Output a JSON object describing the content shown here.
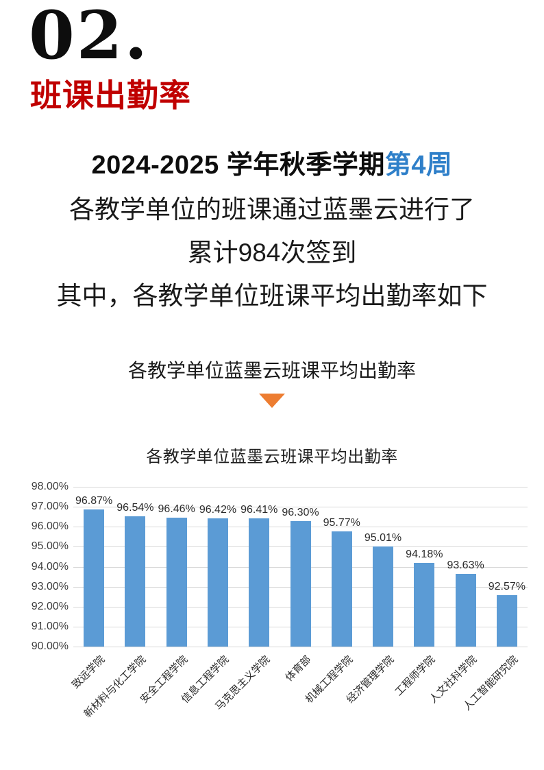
{
  "page": {
    "section_number": "02.",
    "section_title": "班课出勤率",
    "headline_black": "2024-2025 学年秋季学期",
    "headline_week": "第4周",
    "body_lines": [
      "各教学单位的班课通过蓝墨云进行了",
      "累计984次签到",
      "其中，各教学单位班课平均出勤率如下"
    ],
    "chart_subtitle": "各教学单位蓝墨云班课平均出勤率"
  },
  "icons": {
    "triangle_down": "down-pointing-triangle"
  },
  "colors": {
    "section_title_red": "#C00000",
    "headline_week_blue": "#2E7FC9",
    "triangle_orange": "#ED7D31",
    "bar_blue": "#5B9BD5",
    "gridline_gray": "#D8D8D8"
  },
  "chart_data": {
    "type": "bar",
    "title": "各教学单位蓝墨云班课平均出勤率",
    "categories": [
      "致远学院",
      "新材料与化工学院",
      "安全工程学院",
      "信息工程学院",
      "马克思主义学院",
      "体育部",
      "机械工程学院",
      "经济管理学院",
      "工程师学院",
      "人文社科学院",
      "人工智能研究院"
    ],
    "values": [
      96.87,
      96.54,
      96.46,
      96.42,
      96.41,
      96.3,
      95.77,
      95.01,
      94.18,
      93.63,
      92.57
    ],
    "data_labels": [
      "96.87%",
      "96.54%",
      "96.46%",
      "96.42%",
      "96.41%",
      "96.30%",
      "95.77%",
      "95.01%",
      "94.18%",
      "93.63%",
      "92.57%"
    ],
    "ytick_labels": [
      "98.00%",
      "97.00%",
      "96.00%",
      "95.00%",
      "94.00%",
      "93.00%",
      "92.00%",
      "91.00%",
      "90.00%"
    ],
    "ylim": [
      90,
      98
    ],
    "ytick_step": 1,
    "grid": true,
    "legend": "none",
    "xlabel": "",
    "ylabel": "",
    "bar_color": "#5B9BD5"
  }
}
